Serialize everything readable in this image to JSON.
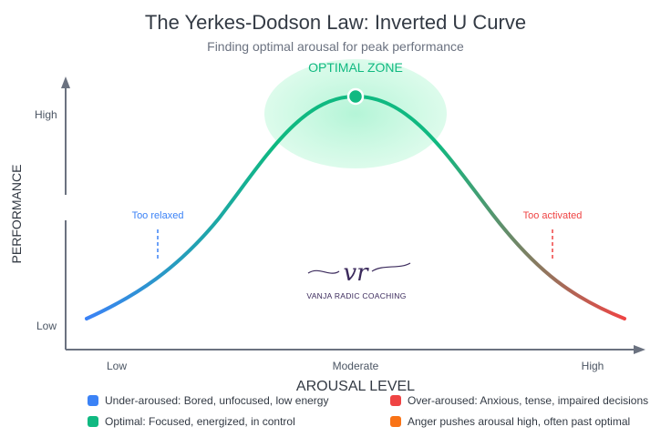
{
  "title": "The Yerkes-Dodson Law: Inverted U Curve",
  "subtitle": "Finding optimal arousal for peak performance",
  "optimal_zone_label": "OPTIMAL ZONE",
  "annotations": {
    "too_relaxed": "Too relaxed",
    "too_activated": "Too activated"
  },
  "axes": {
    "y_label": "PERFORMANCE",
    "x_label": "AROUSAL LEVEL",
    "y_ticks": [
      "High",
      "Low"
    ],
    "x_ticks": [
      "Low",
      "Moderate",
      "High"
    ]
  },
  "logo": {
    "monogram": "vr",
    "text": "VANJA RADIC COACHING"
  },
  "legend": [
    {
      "color": "#3b82f6",
      "text": "Under-aroused: Bored, unfocused, low energy"
    },
    {
      "color": "#ef4444",
      "text": "Over-aroused: Anxious, tense, impaired decisions"
    },
    {
      "color": "#10b981",
      "text": "Optimal: Focused, energized, in control"
    },
    {
      "color": "#f97316",
      "text": "Anger pushes arousal high, often past optimal"
    }
  ],
  "colors": {
    "low": "#3b82f6",
    "optimal": "#10b981",
    "high": "#ef4444",
    "axis": "#6b7280"
  }
}
